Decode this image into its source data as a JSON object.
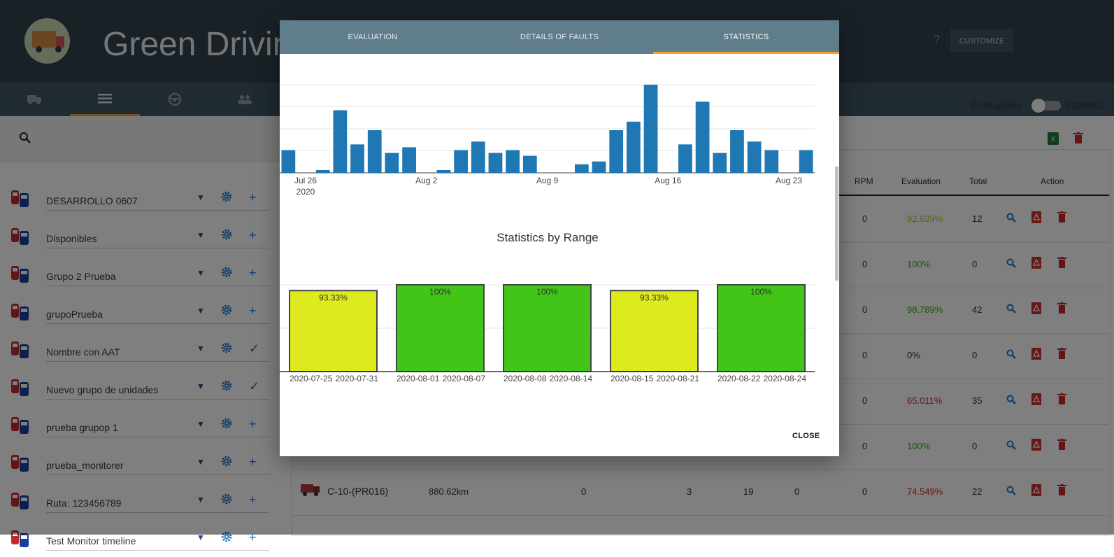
{
  "header": {
    "title": "Green Driving",
    "help": "?",
    "customize": "CUSTOMIZE"
  },
  "toggle": {
    "left_label": "Evaluations",
    "right_label": "Statistics"
  },
  "groups": [
    {
      "name": "DESARROLLO 0607",
      "action": "+"
    },
    {
      "name": "Disponibles",
      "action": "+"
    },
    {
      "name": "Grupo 2 Prueba",
      "action": "+"
    },
    {
      "name": "grupoPrueba",
      "action": "+"
    },
    {
      "name": "Nombre con AAT",
      "action": "✓"
    },
    {
      "name": "Nuevo grupo de unidades",
      "action": "✓"
    },
    {
      "name": "prueba grupop 1",
      "action": "+"
    },
    {
      "name": "prueba_monitorer",
      "action": "+"
    },
    {
      "name": "Ruta: 123456789",
      "action": "+"
    },
    {
      "name": "Test Monitor timeline",
      "action": "+"
    }
  ],
  "table": {
    "headers": {
      "rpm": "RPM",
      "evaluation": "Evaluation",
      "total": "Total",
      "action": "Action"
    },
    "rows": [
      {
        "rpm": "0",
        "evaluation": "92.639%",
        "eval_color": "#c0c020",
        "total": "12"
      },
      {
        "rpm": "0",
        "evaluation": "100%",
        "eval_color": "#33b014",
        "total": "0"
      },
      {
        "rpm": "0",
        "evaluation": "98.789%",
        "eval_color": "#33b014",
        "total": "42"
      },
      {
        "rpm": "0",
        "evaluation": "0%",
        "eval_color": "#333333",
        "total": "0"
      },
      {
        "rpm": "0",
        "evaluation": "65.011%",
        "eval_color": "#d12a2a",
        "total": "35"
      },
      {
        "rpm": "0",
        "evaluation": "100%",
        "eval_color": "#33b014",
        "total": "0"
      },
      {
        "rpm": "0",
        "evaluation": "74.549%",
        "eval_color": "#d12a2a",
        "total": "22",
        "name": "C-10-(PR016)",
        "distance": "880.62km",
        "c1": "0",
        "c2": "3",
        "c3": "19",
        "c4": "0"
      }
    ]
  },
  "modal": {
    "tabs": [
      "EVALUATION",
      "DETAILS OF FAULTS",
      "STATISTICS"
    ],
    "active_tab": "STATISTICS",
    "close": "CLOSE"
  },
  "chart_data": [
    {
      "type": "bar",
      "title": "",
      "x_tick_labels": [
        "Jul 26",
        "Aug 2",
        "Aug 9",
        "Aug 16",
        "Aug 23"
      ],
      "x_year_label": "2020",
      "color": "#1f77b4",
      "dates": [
        "2020-07-25",
        "2020-07-26",
        "2020-07-27",
        "2020-07-28",
        "2020-07-29",
        "2020-07-30",
        "2020-07-31",
        "2020-08-01",
        "2020-08-02",
        "2020-08-03",
        "2020-08-04",
        "2020-08-05",
        "2020-08-06",
        "2020-08-07",
        "2020-08-08",
        "2020-08-09",
        "2020-08-10",
        "2020-08-11",
        "2020-08-12",
        "2020-08-13",
        "2020-08-14",
        "2020-08-15",
        "2020-08-16",
        "2020-08-17",
        "2020-08-18",
        "2020-08-19",
        "2020-08-20",
        "2020-08-21",
        "2020-08-22",
        "2020-08-23",
        "2020-08-24"
      ],
      "values": [
        8,
        0,
        1,
        22,
        10,
        15,
        7,
        9,
        0,
        1,
        8,
        11,
        7,
        8,
        6,
        0,
        0,
        3,
        4,
        15,
        18,
        31,
        0,
        10,
        25,
        7,
        15,
        11,
        8,
        0,
        8
      ],
      "ylim": [
        0,
        31
      ]
    },
    {
      "type": "bar",
      "title": "Statistics by Range",
      "categories": [
        {
          "start": "2020-07-25",
          "end": "2020-07-31"
        },
        {
          "start": "2020-08-01",
          "end": "2020-08-07"
        },
        {
          "start": "2020-08-08",
          "end": "2020-08-14"
        },
        {
          "start": "2020-08-15",
          "end": "2020-08-21"
        },
        {
          "start": "2020-08-22",
          "end": "2020-08-24"
        }
      ],
      "values": [
        93.33,
        100,
        100,
        93.33,
        100
      ],
      "labels": [
        "93.33%",
        "100%",
        "100%",
        "93.33%",
        "100%"
      ],
      "colors": [
        "#dcea1e",
        "#41c517",
        "#41c517",
        "#dcea1e",
        "#41c517"
      ],
      "ylim": [
        0,
        100
      ]
    }
  ]
}
